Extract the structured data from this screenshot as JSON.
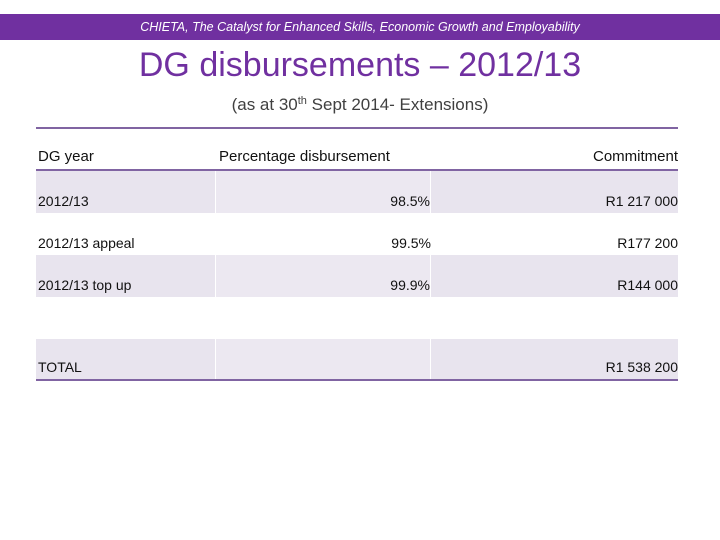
{
  "banner": {
    "text": "CHIETA, The Catalyst for Enhanced Skills, Economic Growth and Employability"
  },
  "title": "DG disbursements – 2012/13",
  "subtitle": {
    "pre": "(as at 30",
    "sup": "th",
    "post": " Sept 2014- Extensions)"
  },
  "table": {
    "headers": {
      "year": "DG year",
      "percentage": "Percentage disbursement",
      "commitment": "Commitment"
    },
    "rows": [
      {
        "year": "2012/13",
        "percentage": "98.5%",
        "commitment": "R1 217 000"
      },
      {
        "year": "2012/13 appeal",
        "percentage": "99.5%",
        "commitment": "R177 200"
      },
      {
        "year": "2012/13 top up",
        "percentage": "99.9%",
        "commitment": "R144 000"
      }
    ],
    "total": {
      "label": "TOTAL",
      "percentage": "",
      "commitment": "R1 538 200"
    }
  },
  "colors": {
    "accent": "#7030a0",
    "rule": "#8064a2",
    "shade": "#e8e4ee"
  }
}
